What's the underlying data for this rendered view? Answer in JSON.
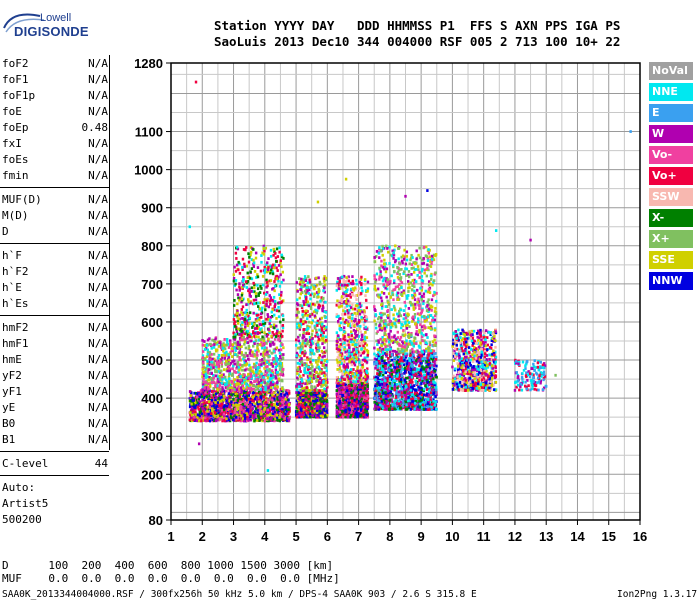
{
  "logo": {
    "line1": "Lowell",
    "line2": "DIGISONDE"
  },
  "header": {
    "labels": "Station YYYY DAY   DDD HHMMSS P1  FFS S AXN PPS IGA PS",
    "values": "SaoLuis 2013 Dec10 344 004000 RSF 005 2 713 100 10+ 22"
  },
  "params": {
    "group1": [
      {
        "name": "foF2",
        "value": "N/A"
      },
      {
        "name": "foF1",
        "value": "N/A"
      },
      {
        "name": "foF1p",
        "value": "N/A"
      },
      {
        "name": "foE",
        "value": "N/A"
      },
      {
        "name": "foEp",
        "value": "0.48"
      },
      {
        "name": "fxI",
        "value": "N/A"
      },
      {
        "name": "foEs",
        "value": "N/A"
      },
      {
        "name": "fmin",
        "value": "N/A"
      }
    ],
    "group2": [
      {
        "name": "MUF(D)",
        "value": "N/A"
      },
      {
        "name": "M(D)",
        "value": "N/A"
      },
      {
        "name": "D",
        "value": "N/A"
      }
    ],
    "group3": [
      {
        "name": "h`F",
        "value": "N/A"
      },
      {
        "name": "h`F2",
        "value": "N/A"
      },
      {
        "name": "h`E",
        "value": "N/A"
      },
      {
        "name": "h`Es",
        "value": "N/A"
      }
    ],
    "group4": [
      {
        "name": "hmF2",
        "value": "N/A"
      },
      {
        "name": "hmF1",
        "value": "N/A"
      },
      {
        "name": "hmE",
        "value": "N/A"
      },
      {
        "name": "yF2",
        "value": "N/A"
      },
      {
        "name": "yF1",
        "value": "N/A"
      },
      {
        "name": "yE",
        "value": "N/A"
      },
      {
        "name": "B0",
        "value": "N/A"
      },
      {
        "name": "B1",
        "value": "N/A"
      }
    ],
    "clevel": {
      "name": "C-level",
      "value": "44"
    },
    "auto": [
      "Auto:",
      "Artist5",
      "500200"
    ]
  },
  "footer": {
    "d_row": "D      100  200  400  600  800 1000 1500 3000 [km]",
    "muf_row": "MUF    0.0  0.0  0.0  0.0  0.0  0.0  0.0  0.0 [MHz]",
    "file_info": "SAA0K_2013344004000.RSF / 300fx256h 50 kHz 5.0 km / DPS-4 SAA0K 903 / 2.6 S 315.8 E",
    "version": "Ion2Png 1.3.17"
  },
  "colors": {
    "NoVal": "#a0a0a0",
    "NNE": "#00e8f0",
    "E": "#3aa0f0",
    "W": "#b000b0",
    "Vo-": "#f040a0",
    "Vo+": "#f00040",
    "SSW": "#f8b8b0",
    "X-": "#008000",
    "X+": "#80c060",
    "SSE": "#d0d000",
    "NNW": "#0000e0"
  },
  "chart_data": {
    "type": "scatter",
    "xlabel": "",
    "ylabel": "",
    "xlim": [
      1,
      16
    ],
    "ylim": [
      80,
      1280
    ],
    "x_ticks": [
      1,
      2,
      3,
      4,
      5,
      6,
      7,
      8,
      9,
      10,
      11,
      12,
      13,
      14,
      15,
      16
    ],
    "y_ticks": [
      80,
      200,
      300,
      400,
      500,
      600,
      700,
      800,
      900,
      1000,
      1100,
      1280
    ],
    "grid": true,
    "legend_position": "right",
    "legend": [
      "NoVal",
      "NNE",
      "E",
      "W",
      "Vo-",
      "Vo+",
      "SSW",
      "X-",
      "X+",
      "SSE",
      "NNW"
    ],
    "clusters": [
      {
        "f_min": 1.6,
        "f_max": 4.8,
        "h_min": 340,
        "h_max": 420,
        "series": [
          "Vo+",
          "Vo-",
          "NNW",
          "W",
          "X-",
          "SSE"
        ],
        "weight": 1.6
      },
      {
        "f_min": 2.0,
        "f_max": 4.6,
        "h_min": 420,
        "h_max": 560,
        "series": [
          "SSE",
          "X+",
          "Vo-",
          "NNE",
          "W"
        ],
        "weight": 1.0
      },
      {
        "f_min": 3.0,
        "f_max": 4.6,
        "h_min": 560,
        "h_max": 800,
        "series": [
          "W",
          "Vo+",
          "SSE",
          "X-",
          "NNE"
        ],
        "weight": 0.5
      },
      {
        "f_min": 5.0,
        "f_max": 6.0,
        "h_min": 350,
        "h_max": 420,
        "series": [
          "X-",
          "NNW",
          "Vo+",
          "W",
          "SSE"
        ],
        "weight": 0.9
      },
      {
        "f_min": 5.0,
        "f_max": 6.0,
        "h_min": 420,
        "h_max": 720,
        "series": [
          "SSE",
          "Vo+",
          "W",
          "NNE",
          "X+"
        ],
        "weight": 0.6
      },
      {
        "f_min": 6.3,
        "f_max": 7.3,
        "h_min": 350,
        "h_max": 440,
        "series": [
          "Vo+",
          "Vo-",
          "NNW",
          "W",
          "X-"
        ],
        "weight": 1.0
      },
      {
        "f_min": 6.3,
        "f_max": 7.3,
        "h_min": 440,
        "h_max": 720,
        "series": [
          "SSE",
          "SSW",
          "NNE",
          "W",
          "Vo+"
        ],
        "weight": 0.7
      },
      {
        "f_min": 7.5,
        "f_max": 9.5,
        "h_min": 370,
        "h_max": 520,
        "series": [
          "NNW",
          "NNE",
          "E",
          "W",
          "X-",
          "Vo+"
        ],
        "weight": 1.5
      },
      {
        "f_min": 7.5,
        "f_max": 9.5,
        "h_min": 520,
        "h_max": 800,
        "series": [
          "W",
          "Vo-",
          "SSE",
          "X+",
          "NNE"
        ],
        "weight": 0.8
      },
      {
        "f_min": 10.0,
        "f_max": 11.4,
        "h_min": 420,
        "h_max": 580,
        "series": [
          "NNW",
          "NNE",
          "SSE",
          "Vo+",
          "W",
          "SSW"
        ],
        "weight": 0.8
      },
      {
        "f_min": 12.0,
        "f_max": 13.0,
        "h_min": 420,
        "h_max": 500,
        "series": [
          "Vo+",
          "W",
          "NNE",
          "E"
        ],
        "weight": 0.15
      }
    ],
    "points": [
      {
        "f": 1.8,
        "h": 1230,
        "series": "Vo+"
      },
      {
        "f": 1.6,
        "h": 850,
        "series": "NNE"
      },
      {
        "f": 4.1,
        "h": 210,
        "series": "NNE"
      },
      {
        "f": 1.9,
        "h": 280,
        "series": "W"
      },
      {
        "f": 15.7,
        "h": 1100,
        "series": "E"
      },
      {
        "f": 12.5,
        "h": 815,
        "series": "W"
      },
      {
        "f": 8.5,
        "h": 930,
        "series": "W"
      },
      {
        "f": 9.2,
        "h": 945,
        "series": "NNW"
      },
      {
        "f": 5.7,
        "h": 915,
        "series": "SSE"
      },
      {
        "f": 6.6,
        "h": 975,
        "series": "SSE"
      },
      {
        "f": 11.4,
        "h": 840,
        "series": "NNE"
      },
      {
        "f": 13.3,
        "h": 460,
        "series": "X+"
      },
      {
        "f": 12.9,
        "h": 480,
        "series": "NNE"
      }
    ]
  }
}
